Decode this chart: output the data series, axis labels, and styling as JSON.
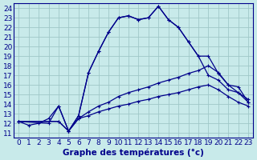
{
  "background_color": "#c8eaea",
  "grid_color": "#a0c8c8",
  "line_color": "#00008b",
  "xlabel": "Graphe des températures (°c)",
  "xlim": [
    -0.5,
    23.5
  ],
  "ylim": [
    10.5,
    24.5
  ],
  "yticks": [
    11,
    12,
    13,
    14,
    15,
    16,
    17,
    18,
    19,
    20,
    21,
    22,
    23,
    24
  ],
  "xticks": [
    0,
    1,
    2,
    3,
    4,
    5,
    6,
    7,
    8,
    9,
    10,
    11,
    12,
    13,
    14,
    15,
    16,
    17,
    18,
    19,
    20,
    21,
    22,
    23
  ],
  "curve1_x": [
    0,
    1,
    2,
    3,
    4,
    5,
    6,
    7,
    8,
    9,
    10,
    11,
    12,
    13,
    14,
    15,
    16,
    17,
    18,
    19,
    20,
    21,
    22,
    23
  ],
  "curve1_y": [
    12.2,
    11.8,
    12.0,
    12.5,
    13.8,
    11.2,
    12.8,
    17.3,
    19.5,
    21.5,
    23.0,
    23.2,
    22.8,
    23.0,
    24.2,
    22.8,
    22.0,
    20.5,
    19.0,
    17.0,
    16.5,
    15.5,
    15.2,
    14.5
  ],
  "curve2_x": [
    0,
    3,
    4,
    5,
    6,
    7,
    8,
    9,
    10,
    11,
    12,
    13,
    14,
    15,
    16,
    17,
    18,
    19,
    20,
    21,
    22,
    23
  ],
  "curve2_y": [
    12.2,
    12.0,
    13.8,
    11.2,
    12.8,
    17.3,
    19.5,
    21.5,
    23.0,
    23.2,
    22.8,
    23.0,
    24.2,
    22.8,
    22.0,
    20.5,
    19.0,
    19.0,
    17.2,
    16.0,
    15.8,
    14.2
  ],
  "line3_x": [
    0,
    4,
    5,
    6,
    7,
    8,
    9,
    10,
    11,
    12,
    13,
    14,
    15,
    16,
    17,
    18,
    19,
    20,
    21,
    22,
    23
  ],
  "line3_y": [
    12.2,
    12.2,
    11.2,
    12.5,
    13.2,
    13.8,
    14.2,
    14.8,
    15.2,
    15.5,
    15.8,
    16.2,
    16.5,
    16.8,
    17.2,
    17.5,
    18.0,
    17.3,
    16.0,
    15.2,
    14.2
  ],
  "line4_x": [
    0,
    4,
    5,
    6,
    7,
    8,
    9,
    10,
    11,
    12,
    13,
    14,
    15,
    16,
    17,
    18,
    19,
    20,
    21,
    22,
    23
  ],
  "line4_y": [
    12.2,
    12.2,
    11.2,
    12.5,
    12.8,
    13.2,
    13.5,
    13.8,
    14.0,
    14.3,
    14.5,
    14.8,
    15.0,
    15.2,
    15.5,
    15.8,
    16.0,
    15.5,
    14.8,
    14.2,
    13.8
  ],
  "font_size": 6.5
}
